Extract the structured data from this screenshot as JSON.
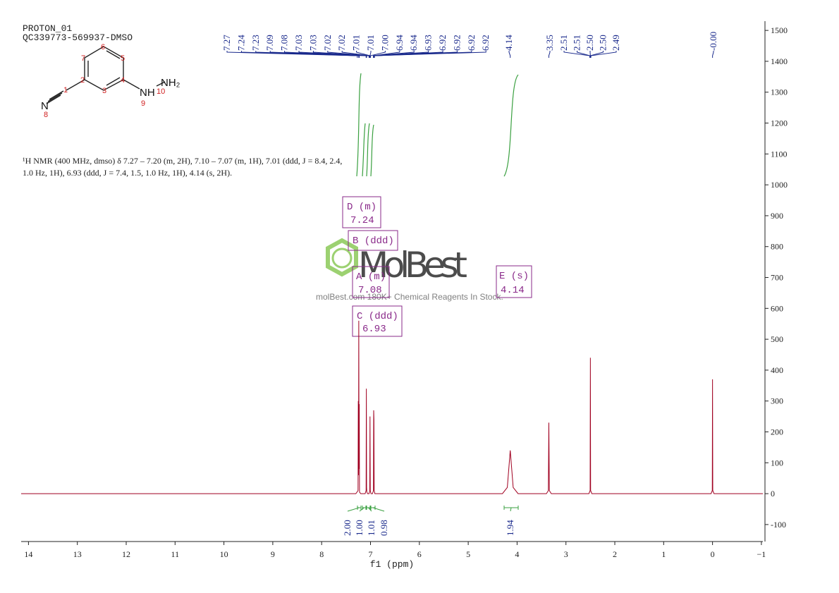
{
  "header": {
    "title": "PROTON_01",
    "sample": "QC339773-569937-DMSO"
  },
  "structure": {
    "atoms": [
      "N",
      "NH",
      "NH₂"
    ],
    "numbers": [
      "1",
      "2",
      "3",
      "4",
      "5",
      "6",
      "7",
      "8",
      "9",
      "10"
    ]
  },
  "description": [
    "¹H NMR (400 MHz, dmso) δ 7.27 – 7.20 (m, 2H), 7.10 – 7.07 (m, 1H), 7.01 (ddd, J = 8.4, 2.4,",
    "1.0 Hz, 1H), 6.93 (ddd, J = 7.4, 1.5, 1.0 Hz, 1H), 4.14 (s, 2H)."
  ],
  "watermark": {
    "brand": "MolBest",
    "tagline": "molBest.com 180K+ Chemical Reagents In Stock."
  },
  "multiplets": [
    {
      "name": "D (m)",
      "shift": "7.24"
    },
    {
      "name": "B (ddd)"
    },
    {
      "name": "A (m)",
      "shift": "7.08"
    },
    {
      "name": "C (ddd)",
      "shift": "6.93"
    },
    {
      "name": "E (s)",
      "shift": "4.14"
    }
  ],
  "peak_labels": [
    "7.27",
    "7.24",
    "7.23",
    "7.09",
    "7.08",
    "7.03",
    "7.03",
    "7.02",
    "7.02",
    "7.01",
    "7.01",
    "7.00",
    "6.94",
    "6.94",
    "6.93",
    "6.92",
    "6.92",
    "6.92",
    "6.92",
    "4.14",
    "3.35",
    "2.51",
    "2.51",
    "2.50",
    "2.50",
    "2.49",
    "-0.00"
  ],
  "integrals": [
    "2.00",
    "1.00",
    "1.01",
    "0.98",
    "1.94"
  ],
  "chart_data": {
    "type": "line",
    "xlabel": "f1 (ppm)",
    "x": [
      14.15,
      7.3,
      7.255,
      7.25,
      7.245,
      7.24,
      7.235,
      7.23,
      7.225,
      7.2,
      7.11,
      7.09,
      7.085,
      7.08,
      7.075,
      7.06,
      7.03,
      7.015,
      7.01,
      7.005,
      6.99,
      6.96,
      6.94,
      6.935,
      6.93,
      6.925,
      6.91,
      4.3,
      4.2,
      4.14,
      4.08,
      3.98,
      3.4,
      3.36,
      3.35,
      3.34,
      3.3,
      2.53,
      2.505,
      2.5,
      2.495,
      2.47,
      0.03,
      0.005,
      0,
      -0.005,
      -0.03,
      -1.03
    ],
    "series": [
      {
        "color": "#a00020",
        "values": [
          0,
          0,
          10,
          300,
          60,
          560,
          80,
          290,
          5,
          0,
          0,
          10,
          340,
          20,
          5,
          0,
          0,
          10,
          250,
          10,
          0,
          0,
          10,
          270,
          240,
          10,
          0,
          0,
          20,
          140,
          20,
          0,
          0,
          10,
          230,
          10,
          0,
          0,
          10,
          440,
          10,
          0,
          0,
          10,
          370,
          10,
          0,
          0
        ]
      }
    ],
    "xlim": [
      14.15,
      -1.03
    ],
    "xticks": [
      14,
      13,
      12,
      11,
      10,
      9,
      8,
      7,
      6,
      5,
      4,
      3,
      2,
      1,
      0,
      {
        "value": -1,
        "label": "−1"
      }
    ],
    "ylim": [
      -155,
      1530
    ],
    "yticks": [
      -100,
      0,
      100,
      200,
      300,
      400,
      500,
      600,
      700,
      800,
      900,
      1000,
      1100,
      1200,
      1300,
      1400,
      1500
    ]
  }
}
